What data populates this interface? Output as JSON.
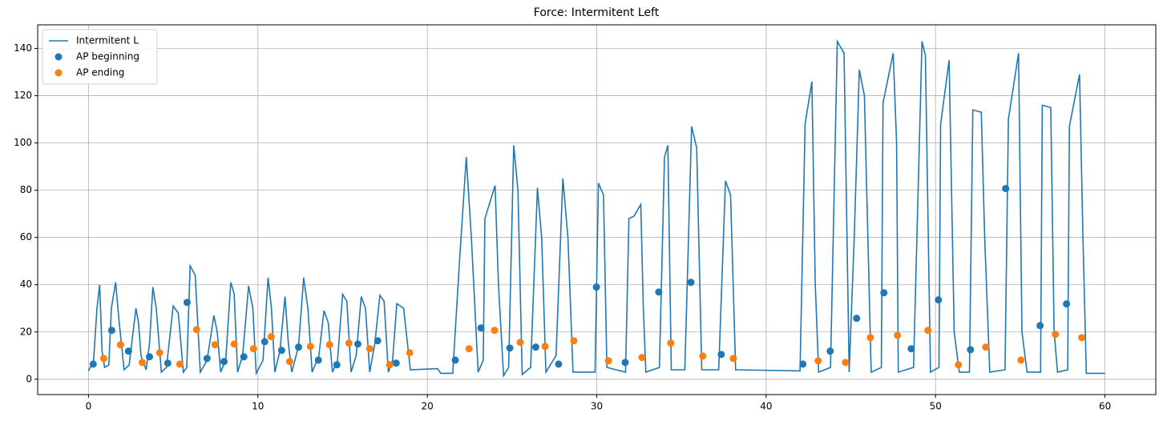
{
  "chart_data": {
    "type": "line",
    "title": "Force: Intermitent Left",
    "xlim": [
      -3,
      63
    ],
    "ylim": [
      -6.5,
      150
    ],
    "xticks": [
      0,
      10,
      20,
      30,
      40,
      50,
      60
    ],
    "yticks": [
      0,
      20,
      40,
      60,
      80,
      100,
      120,
      140
    ],
    "grid": true,
    "legend": "upper left",
    "series": [
      {
        "name": "Intermitent L",
        "type": "line",
        "color": "#1f77b4",
        "x": [
          0,
          0.3,
          0.5,
          0.66,
          0.8,
          0.95,
          1.2,
          1.35,
          1.6,
          1.8,
          2.1,
          2.4,
          2.8,
          2.95,
          3.1,
          3.4,
          3.6,
          3.8,
          4.0,
          4.3,
          4.6,
          5.0,
          5.3,
          5.6,
          5.8,
          6.0,
          6.3,
          6.6,
          7.0,
          7.4,
          7.6,
          7.8,
          8.1,
          8.4,
          8.6,
          8.8,
          9.1,
          9.45,
          9.7,
          9.9,
          10.3,
          10.6,
          10.8,
          11.0,
          11.3,
          11.6,
          11.8,
          12.0,
          12.4,
          12.7,
          12.95,
          13.2,
          13.6,
          13.9,
          14.15,
          14.4,
          14.7,
          15.0,
          15.25,
          15.5,
          15.8,
          16.1,
          16.35,
          16.6,
          16.9,
          17.2,
          17.45,
          17.7,
          17.95,
          18.2,
          18.6,
          19.0,
          20.6,
          20.8,
          21.5,
          21.9,
          22.3,
          22.6,
          23.0,
          23.3,
          23.4,
          24.0,
          24.2,
          24.5,
          24.8,
          25.1,
          25.35,
          25.6,
          26.1,
          26.5,
          26.75,
          27.0,
          27.6,
          28.0,
          28.3,
          28.6,
          29.9,
          30.1,
          30.4,
          30.6,
          31.7,
          31.9,
          32.2,
          32.6,
          32.75,
          32.9,
          33.7,
          34.0,
          34.2,
          34.4,
          35.2,
          35.6,
          35.9,
          36.2,
          37.2,
          37.6,
          37.9,
          38.2,
          42.0,
          42.3,
          42.7,
          42.9,
          43.1,
          43.8,
          44.2,
          44.6,
          44.9,
          45.2,
          45.5,
          45.8,
          46.2,
          46.8,
          46.9,
          47.5,
          47.7,
          47.8,
          48.7,
          49.2,
          49.4,
          49.7,
          50.2,
          50.3,
          50.8,
          51.1,
          51.4,
          52.0,
          52.2,
          52.7,
          52.9,
          53.2,
          54.1,
          54.3,
          54.9,
          55.1,
          55.4,
          56.2,
          56.3,
          56.8,
          57.0,
          57.2,
          57.8,
          57.9,
          58.5,
          58.7,
          58.9,
          60
        ],
        "values": [
          3.5,
          8,
          30,
          40,
          12,
          5,
          6,
          30,
          41,
          25,
          4,
          6,
          30,
          24,
          10,
          4,
          15,
          39,
          30,
          3,
          5,
          31,
          28,
          3,
          5,
          48,
          44,
          3,
          8,
          27,
          20,
          3,
          8,
          41,
          36,
          3,
          10,
          39.5,
          30,
          2.5,
          8,
          43,
          30,
          3,
          12,
          35,
          15,
          3,
          14,
          43,
          30,
          3,
          10,
          29,
          24,
          3,
          8,
          36,
          33,
          3,
          10,
          35,
          30,
          3,
          15,
          35.5,
          33,
          3,
          8,
          32,
          30,
          4,
          4.5,
          2.5,
          2.5,
          50,
          94,
          60,
          3,
          8,
          68,
          82,
          40,
          1.5,
          5,
          99,
          80,
          2,
          5,
          81,
          60,
          3,
          10,
          85,
          60,
          3,
          3,
          83,
          78,
          5,
          3,
          68,
          69,
          74,
          30,
          3,
          5,
          94,
          99,
          4,
          4,
          107,
          98,
          4,
          4,
          84,
          78,
          4,
          3.5,
          108,
          126,
          40,
          3,
          5,
          143,
          138,
          3,
          60,
          131,
          120,
          3,
          5,
          117,
          138,
          100,
          3,
          5,
          143,
          137,
          3,
          5,
          108,
          135,
          20,
          3,
          3,
          114,
          113,
          60,
          3,
          4,
          110,
          138,
          20,
          3,
          3,
          116,
          115,
          20,
          3,
          4,
          107,
          129,
          60,
          2.5,
          2.5
        ]
      },
      {
        "name": "AP beginning",
        "type": "scatter",
        "color": "#1f77b4",
        "x": [
          0.28,
          1.37,
          2.36,
          3.6,
          4.68,
          5.82,
          7.0,
          8.0,
          9.17,
          10.4,
          11.4,
          12.4,
          13.57,
          14.66,
          15.9,
          17.07,
          18.16,
          21.65,
          23.17,
          24.87,
          26.4,
          27.75,
          29.98,
          31.68,
          33.66,
          35.56,
          37.35,
          42.17,
          43.78,
          45.34,
          46.95,
          48.56,
          50.17,
          52.06,
          54.14,
          56.17,
          57.73
        ],
        "values": [
          6.4,
          20.7,
          11.9,
          9.5,
          6.8,
          32.5,
          8.8,
          7.5,
          9.5,
          15.9,
          12.2,
          13.6,
          8.1,
          6.1,
          14.9,
          16.3,
          6.8,
          8.1,
          21.7,
          13.2,
          13.6,
          6.4,
          39,
          7.1,
          36.9,
          41,
          10.5,
          6.4,
          11.9,
          25.8,
          36.6,
          12.9,
          33.6,
          12.5,
          80.7,
          22.7,
          31.9
        ]
      },
      {
        "name": "AP ending",
        "type": "scatter",
        "color": "#ff7f0e",
        "x": [
          0.9,
          1.89,
          3.17,
          4.2,
          5.39,
          6.38,
          7.47,
          8.6,
          9.74,
          10.78,
          11.87,
          13.1,
          14.23,
          15.37,
          16.6,
          17.78,
          18.96,
          22.46,
          23.97,
          25.48,
          26.95,
          28.65,
          30.69,
          32.67,
          34.37,
          36.26,
          38.06,
          43.07,
          44.68,
          46.15,
          47.75,
          49.55,
          51.35,
          52.96,
          55.04,
          57.07,
          58.63
        ],
        "values": [
          8.8,
          14.6,
          7.1,
          11.2,
          6.4,
          21,
          14.6,
          14.9,
          12.9,
          18,
          7.5,
          13.9,
          14.6,
          15.3,
          12.9,
          6.1,
          11.2,
          12.9,
          20.7,
          15.6,
          13.9,
          16.3,
          7.8,
          9.2,
          15.3,
          9.8,
          8.8,
          7.8,
          7.1,
          17.6,
          18.6,
          20.7,
          6.1,
          13.6,
          8.1,
          19,
          17.6
        ]
      }
    ]
  }
}
